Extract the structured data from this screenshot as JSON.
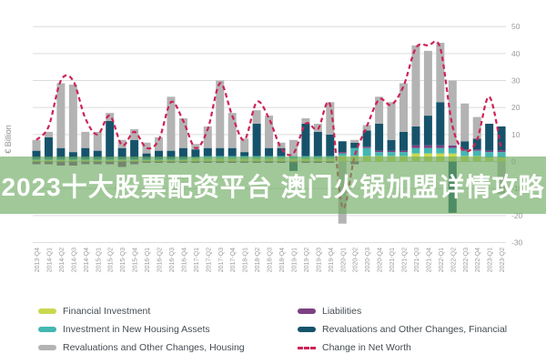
{
  "banner": {
    "text": "2023十大股票配资平台 澳门火锅加盟详情攻略",
    "overlay_color": "rgba(110,170,98,0.65)"
  },
  "ylabel": "€ Billion",
  "chart_data": {
    "type": "bar",
    "subtype": "stacked-bars-with-dashed-line",
    "title": "",
    "xlabel": "",
    "ylabel": "€ Billion",
    "ylim": [
      -30,
      50
    ],
    "yticks": [
      50,
      40,
      30,
      20,
      10,
      0,
      -10,
      -20,
      -30
    ],
    "grid": true,
    "legend_position": "bottom",
    "categories": [
      "2013-Q4",
      "2014-Q1",
      "2014-Q2",
      "2014-Q3",
      "2014-Q4",
      "2015-Q1",
      "2015-Q2",
      "2015-Q3",
      "2015-Q4",
      "2016-Q1",
      "2016-Q2",
      "2016-Q3",
      "2016-Q4",
      "2017-Q1",
      "2017-Q2",
      "2017-Q3",
      "2017-Q4",
      "2018-Q1",
      "2018-Q2",
      "2018-Q3",
      "2018-Q4",
      "2019-Q1",
      "2019-Q2",
      "2019-Q3",
      "2019-Q4",
      "2020-Q1",
      "2020-Q2",
      "2020-Q3",
      "2020-Q4",
      "2021-Q1",
      "2021-Q2",
      "2021-Q3",
      "2021-Q4",
      "2022-Q1",
      "2022-Q2",
      "2022-Q3",
      "2022-Q4",
      "2023-Q1",
      "2023-Q2"
    ],
    "series": [
      {
        "name": "Financial Investment",
        "color": "#c9d84f",
        "values": [
          0.5,
          0.5,
          0.5,
          0.5,
          0.5,
          0.5,
          0.5,
          0.5,
          0.5,
          0.5,
          0.5,
          0.5,
          0.5,
          1,
          1,
          1,
          1,
          1,
          1,
          1,
          1,
          1,
          1,
          1,
          1,
          2,
          2,
          2,
          2,
          2,
          2,
          3,
          3,
          3,
          3,
          2,
          2,
          1.5,
          1.5
        ]
      },
      {
        "name": "Investment in New Housing Assets",
        "color": "#43b7b1",
        "values": [
          0.5,
          0.5,
          0.5,
          0.5,
          0.5,
          0.5,
          0.5,
          0.5,
          0.5,
          0.5,
          0.5,
          0.5,
          0.5,
          0.5,
          1,
          1,
          1,
          1,
          1,
          1,
          1,
          1,
          1,
          1,
          1,
          1,
          3,
          3,
          1.5,
          1.5,
          1.5,
          2,
          2,
          2,
          2,
          2,
          2,
          2,
          2
        ]
      },
      {
        "name": "Liabilities",
        "color": "#7c4183",
        "values": [
          -1,
          -1,
          -1.5,
          -1.5,
          -1,
          -1,
          -1,
          -2,
          -1,
          -0.5,
          -0.5,
          -0.5,
          -0.5,
          -0.5,
          -0.5,
          -0.5,
          -0.5,
          -0.5,
          -0.5,
          -0.5,
          -0.5,
          -0.5,
          -0.5,
          -0.5,
          -0.5,
          0.5,
          -1,
          0.5,
          0.5,
          0.5,
          0.5,
          1,
          1,
          1,
          1,
          0.5,
          0.5,
          0.5,
          0.5
        ]
      },
      {
        "name": "Revaluations and Other Changes, Financial",
        "color": "#16536b",
        "values": [
          3,
          8,
          4,
          2.5,
          4,
          3,
          14,
          4,
          7,
          2,
          3,
          3,
          4,
          3,
          3,
          3,
          3,
          1.5,
          12,
          3,
          3,
          -3,
          12,
          9,
          8,
          4,
          2,
          6,
          10,
          4,
          7,
          7,
          11,
          16,
          -19,
          3,
          4,
          10,
          9
        ]
      },
      {
        "name": "Revaluations and Other Changes, Housing",
        "color": "#b3b3b3",
        "values": [
          4,
          2,
          24,
          25,
          6,
          7,
          3,
          3,
          4,
          4,
          5,
          20,
          11,
          2,
          8,
          25,
          13,
          5,
          5,
          12,
          2,
          6,
          2,
          3,
          12,
          -23,
          1,
          2,
          10,
          14,
          18,
          30,
          24,
          22,
          24,
          14,
          8,
          0,
          -12
        ]
      }
    ],
    "line_series": {
      "name": "Change in Net Worth",
      "color": "#ce2255",
      "style": "dashed",
      "values": [
        8,
        13,
        30,
        30,
        16,
        10,
        17,
        6,
        11,
        5,
        8,
        22,
        15,
        5,
        12,
        29,
        17,
        8,
        22,
        16,
        5,
        3,
        14,
        12,
        21,
        -17,
        2,
        13,
        23,
        21,
        28,
        42,
        43,
        42,
        13,
        4,
        8,
        24,
        4
      ]
    },
    "legend_columns": [
      [
        0,
        1,
        4
      ],
      [
        2,
        3,
        "line"
      ]
    ]
  }
}
